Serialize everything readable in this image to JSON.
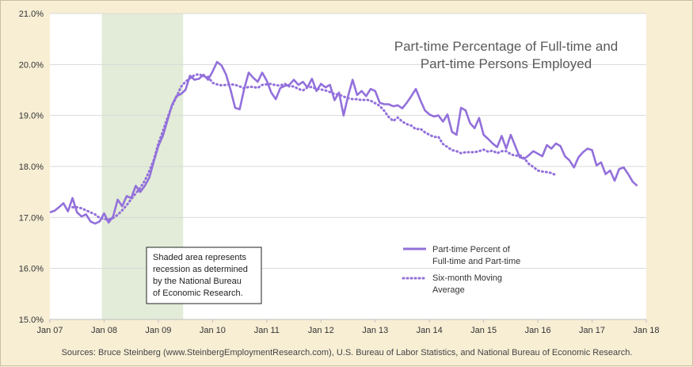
{
  "chart_data": {
    "type": "line",
    "title_lines": [
      "Part-time Percentage of Full-time and",
      "Part-time Persons Employed"
    ],
    "ylim": [
      15.0,
      21.0
    ],
    "y_ticks": [
      "15.0%",
      "16.0%",
      "17.0%",
      "18.0%",
      "19.0%",
      "20.0%",
      "21.0%"
    ],
    "x_ticks": [
      "Jan 07",
      "Jan 08",
      "Jan 09",
      "Jan 10",
      "Jan 11",
      "Jan 12",
      "Jan 13",
      "Jan 14",
      "Jan 15",
      "Jan 16",
      "Jan 17",
      "Jan 18"
    ],
    "x_start": "2007-01",
    "grid": "horizontal",
    "legend_position": "lower-right",
    "recession": {
      "start": "2007-12",
      "end": "2009-06",
      "color": "#e2ecd8"
    },
    "annotation_lines": [
      "Shaded area represents",
      "recession as determined",
      "by the National Bureau",
      "of Economic Research."
    ],
    "source": "Sources: Bruce Steinberg (www.SteinbergEmploymentResearch.com), U.S. Bureau of Labor Statistics, and National Bureau of Economic Research.",
    "series": [
      {
        "name_lines": [
          "Part-time Percent of",
          "Full-time and Part-time"
        ],
        "color": "#9370db",
        "style": "solid",
        "values": [
          17.1,
          17.13,
          17.2,
          17.28,
          17.12,
          17.38,
          17.1,
          17.02,
          17.06,
          16.92,
          16.88,
          16.92,
          17.08,
          16.9,
          17.02,
          17.35,
          17.22,
          17.42,
          17.38,
          17.62,
          17.5,
          17.62,
          17.78,
          18.1,
          18.4,
          18.6,
          18.9,
          19.2,
          19.38,
          19.42,
          19.5,
          19.78,
          19.7,
          19.72,
          19.8,
          19.7,
          19.86,
          20.05,
          19.98,
          19.8,
          19.5,
          19.15,
          19.12,
          19.52,
          19.84,
          19.74,
          19.66,
          19.84,
          19.68,
          19.45,
          19.32,
          19.54,
          19.58,
          19.6,
          19.7,
          19.6,
          19.66,
          19.55,
          19.72,
          19.48,
          19.62,
          19.55,
          19.6,
          19.3,
          19.45,
          19.0,
          19.38,
          19.7,
          19.4,
          19.48,
          19.38,
          19.52,
          19.48,
          19.25,
          19.22,
          19.22,
          19.18,
          19.2,
          19.14,
          19.25,
          19.38,
          19.52,
          19.3,
          19.1,
          19.02,
          18.98,
          19.0,
          18.88,
          19.02,
          18.68,
          18.62,
          19.15,
          19.1,
          18.85,
          18.75,
          18.95,
          18.62,
          18.54,
          18.45,
          18.38,
          18.6,
          18.35,
          18.62,
          18.4,
          18.18,
          18.15,
          18.22,
          18.3,
          18.25,
          18.2,
          18.42,
          18.35,
          18.45,
          18.4,
          18.2,
          18.12,
          17.98,
          18.18,
          18.28,
          18.35,
          18.32,
          18.02,
          18.08,
          17.85,
          17.92,
          17.72,
          17.95,
          17.98,
          17.85,
          17.7,
          17.62
        ]
      },
      {
        "name_lines": [
          "Six-month Moving",
          "Average"
        ],
        "color": "#9370db",
        "style": "dotted",
        "start_index": 5,
        "values": [
          17.2,
          17.2,
          17.18,
          17.14,
          17.1,
          17.06,
          16.99,
          16.97,
          16.96,
          16.99,
          17.05,
          17.14,
          17.24,
          17.36,
          17.47,
          17.58,
          17.72,
          17.91,
          18.13,
          18.45,
          18.69,
          18.95,
          19.18,
          19.36,
          19.56,
          19.66,
          19.73,
          19.79,
          19.81,
          19.77,
          19.76,
          19.64,
          19.61,
          19.59,
          19.6,
          19.61,
          19.6,
          19.57,
          19.53,
          19.56,
          19.56,
          19.54,
          19.6,
          19.61,
          19.62,
          19.59,
          19.59,
          19.62,
          19.57,
          19.57,
          19.52,
          19.49,
          19.55,
          19.56,
          19.52,
          19.51,
          19.49,
          19.46,
          19.42,
          19.41,
          19.37,
          19.34,
          19.32,
          19.32,
          19.3,
          19.31,
          19.29,
          19.24,
          19.19,
          19.09,
          18.97,
          18.89,
          18.96,
          18.88,
          18.83,
          18.8,
          18.73,
          18.74,
          18.67,
          18.62,
          18.58,
          18.58,
          18.44,
          18.38,
          18.32,
          18.3,
          18.26,
          18.28,
          18.28,
          18.28,
          18.3,
          18.33,
          18.29,
          18.31,
          18.26,
          18.3,
          18.3,
          18.24,
          18.21,
          18.22,
          18.16,
          18.05,
          17.99,
          17.92,
          17.9,
          17.89,
          17.87,
          17.83
        ]
      }
    ]
  }
}
